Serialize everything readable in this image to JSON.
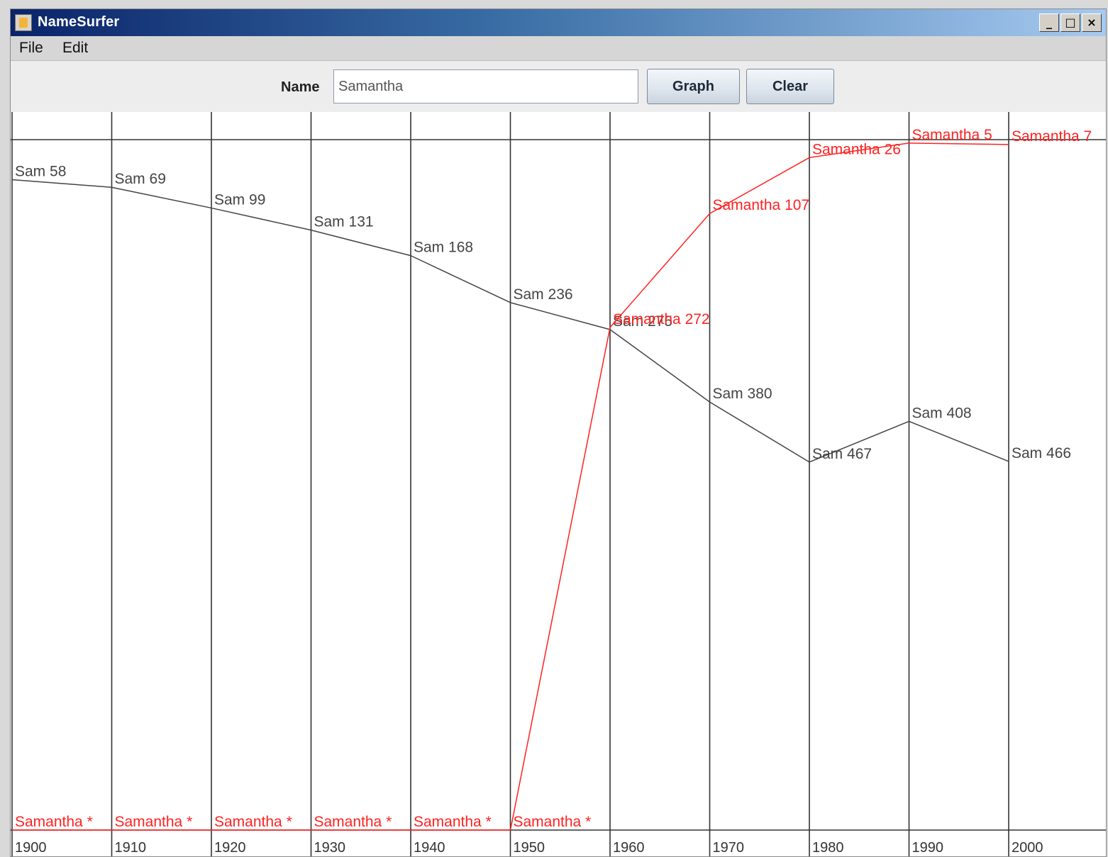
{
  "window": {
    "title": "NameSurfer",
    "controls": [
      "minimize",
      "maximize",
      "close"
    ]
  },
  "menu": {
    "items": [
      "File",
      "Edit"
    ]
  },
  "toolbar": {
    "name_label": "Name",
    "name_value": "Samantha",
    "graph_label": "Graph",
    "clear_label": "Clear"
  },
  "chart_data": {
    "type": "line",
    "title": "",
    "xlabel": "",
    "ylabel": "",
    "x": [
      "1900",
      "1910",
      "1920",
      "1930",
      "1940",
      "1950",
      "1960",
      "1970",
      "1980",
      "1990",
      "2000"
    ],
    "ylim": [
      0,
      1000
    ],
    "rank_zero_display": "*",
    "y_inverted": true,
    "grid": "vertical decade lines",
    "series": [
      {
        "name": "Sam",
        "color": "#444444",
        "values": [
          58,
          69,
          99,
          131,
          168,
          236,
          275,
          380,
          467,
          408,
          466
        ],
        "labels": [
          "Sam 58",
          "Sam 69",
          "Sam 99",
          "Sam 131",
          "Sam 168",
          "Sam 236",
          "Sam 275",
          "Sam 380",
          "Sam 467",
          "Sam 408",
          "Sam 466"
        ]
      },
      {
        "name": "Samantha",
        "color": "#ff2222",
        "values": [
          0,
          0,
          0,
          0,
          0,
          0,
          272,
          107,
          26,
          5,
          7
        ],
        "labels": [
          "Samantha *",
          "Samantha *",
          "Samantha *",
          "Samantha *",
          "Samantha *",
          "Samantha *",
          "Samantha 272",
          "Samantha 107",
          "Samantha 26",
          "Samantha 5",
          "Samantha 7"
        ]
      }
    ]
  }
}
